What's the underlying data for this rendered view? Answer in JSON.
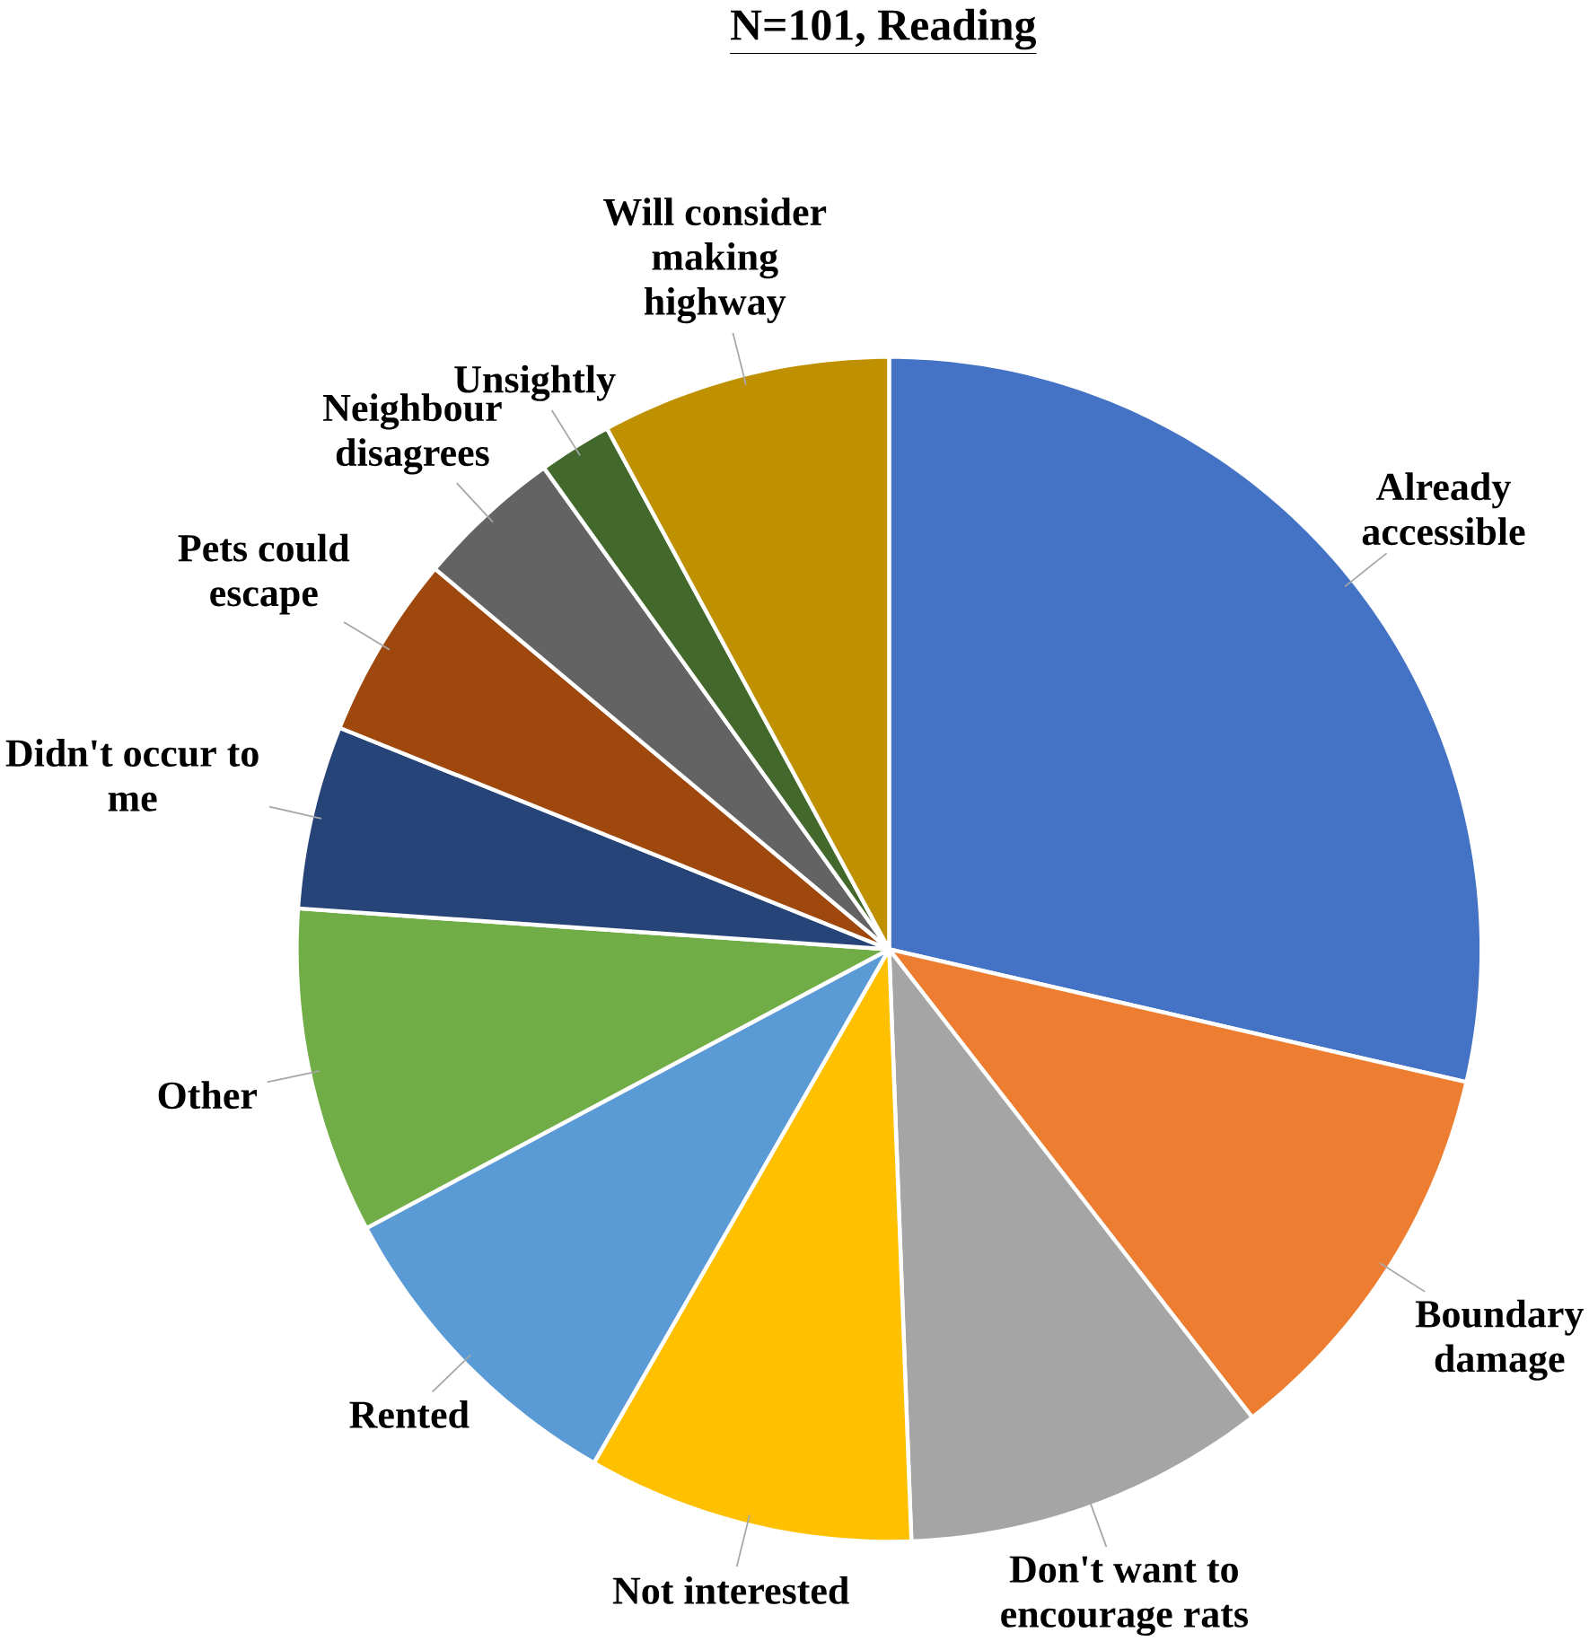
{
  "chart_data": {
    "type": "pie",
    "title": "N=101, Reading",
    "categories": [
      "Already accessible",
      "Boundary damage",
      "Don't want to encourage rats",
      "Not interested",
      "Rented",
      "Other",
      "Didn't occur to me",
      "Pets could escape",
      "Neighbour disagrees",
      "Unsightly",
      "Will consider making highway"
    ],
    "values": [
      28.6,
      10.9,
      9.9,
      8.9,
      8.9,
      8.9,
      5,
      5,
      4,
      2,
      7.9
    ],
    "colors": [
      "#4472c4",
      "#ed7d31",
      "#a5a5a5",
      "#ffc000",
      "#5b9bd5",
      "#70ad47",
      "#264478",
      "#9e480e",
      "#636363",
      "#43682b",
      "#bf9000"
    ]
  }
}
